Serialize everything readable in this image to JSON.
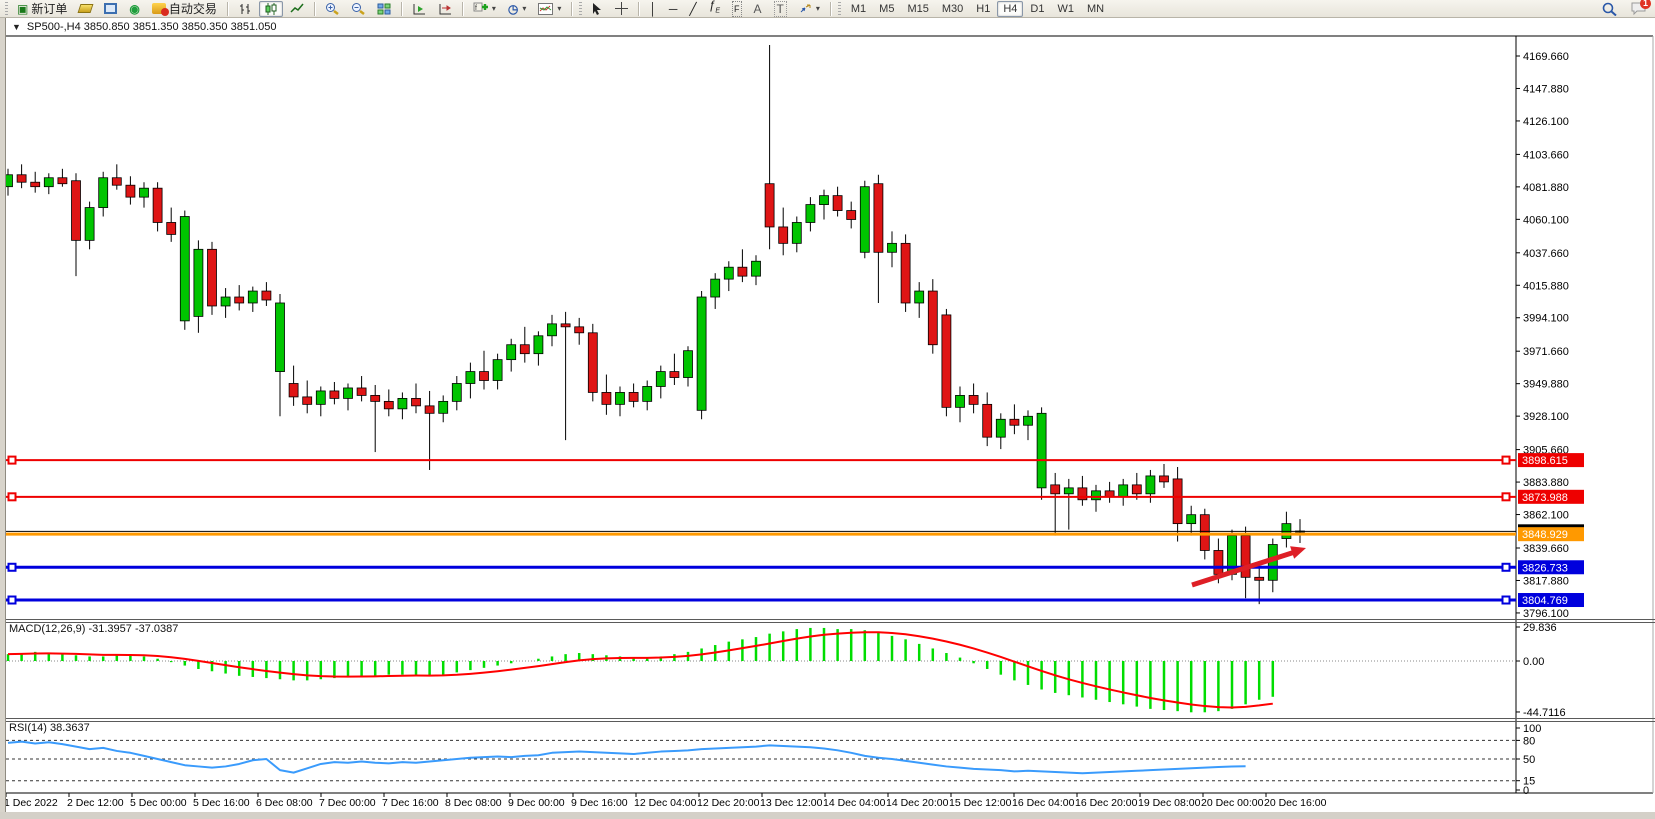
{
  "toolbar": {
    "new_order": "新订单",
    "auto_trading": "自动交易",
    "text_tool": "A",
    "label_tool": "T",
    "timeframes": [
      "M1",
      "M5",
      "M15",
      "M30",
      "H1",
      "H4",
      "D1",
      "W1",
      "MN"
    ],
    "active_timeframe": "H4",
    "notification_badge": "1"
  },
  "window": {
    "title": "SP500-,H4 3850.850 3851.350 3850.350 3851.050"
  },
  "chart_data": {
    "type": "candlestick",
    "symbol_period": "SP500-,H4",
    "ohlc_title": {
      "open": "3850.850",
      "high": "3851.350",
      "low": "3850.350",
      "close": "3851.050"
    },
    "colors": {
      "up": "#00c400",
      "down": "#df1515",
      "wick": "#000000",
      "line_red": "#ee0000",
      "line_orange": "#ff9900",
      "line_blue": "#0000dd",
      "macd_hist": "#00dd00",
      "macd_signal": "#ff0000",
      "rsi": "#3a9bfc",
      "arrow": "#de1f26"
    },
    "price_axis_ticks": [
      "4169.660",
      "4147.880",
      "4126.100",
      "4103.660",
      "4081.880",
      "4060.100",
      "4037.660",
      "4015.880",
      "3994.100",
      "3971.660",
      "3949.880",
      "3928.100",
      "3905.660",
      "3883.880",
      "3862.100",
      "3839.660",
      "3817.880",
      "3796.100"
    ],
    "time_labels": [
      "1 Dec 2022",
      "2 Dec 12:00",
      "5 Dec 00:00",
      "5 Dec 16:00",
      "6 Dec 08:00",
      "7 Dec 00:00",
      "7 Dec 16:00",
      "8 Dec 08:00",
      "9 Dec 00:00",
      "9 Dec 16:00",
      "12 Dec 04:00",
      "12 Dec 20:00",
      "13 Dec 12:00",
      "14 Dec 04:00",
      "14 Dec 20:00",
      "15 Dec 12:00",
      "16 Dec 04:00",
      "16 Dec 20:00",
      "19 Dec 08:00",
      "20 Dec 00:00",
      "20 Dec 16:00"
    ],
    "lines": [
      {
        "price": 3898.615,
        "label": "3898.615",
        "color": "#ee0000",
        "width": 2,
        "handles": true
      },
      {
        "price": 3873.988,
        "label": "3873.988",
        "color": "#ee0000",
        "width": 2,
        "handles": true
      },
      {
        "price": 3848.929,
        "label": "3848.929",
        "color": "#ff9900",
        "width": 3,
        "handles": false
      },
      {
        "price": 3826.733,
        "label": "3826.733",
        "color": "#0000dd",
        "width": 3,
        "handles": true
      },
      {
        "price": 3804.769,
        "label": "3804.769",
        "color": "#0000dd",
        "width": 3,
        "handles": true
      }
    ],
    "bid_line_price": 3850.85,
    "candles": [
      [
        4082,
        4094,
        4076,
        4090
      ],
      [
        4090,
        4097,
        4081,
        4085
      ],
      [
        4085,
        4092,
        4078,
        4082
      ],
      [
        4082,
        4091,
        4077,
        4088
      ],
      [
        4088,
        4094,
        4082,
        4084
      ],
      [
        4086,
        4091,
        4022,
        4046
      ],
      [
        4046,
        4072,
        4040,
        4068
      ],
      [
        4068,
        4092,
        4062,
        4088
      ],
      [
        4088,
        4097,
        4080,
        4083
      ],
      [
        4083,
        4089,
        4070,
        4075
      ],
      [
        4075,
        4085,
        4068,
        4081
      ],
      [
        4081,
        4085,
        4052,
        4058
      ],
      [
        4058,
        4068,
        4045,
        4050
      ],
      [
        3992,
        4066,
        3986,
        4062
      ],
      [
        3995,
        4046,
        3984,
        4040
      ],
      [
        4040,
        4045,
        3996,
        4002
      ],
      [
        4002,
        4014,
        3994,
        4008
      ],
      [
        4008,
        4016,
        3999,
        4004
      ],
      [
        4004,
        4015,
        3998,
        4012
      ],
      [
        4012,
        4018,
        4002,
        4006
      ],
      [
        3958,
        4010,
        3928,
        4004
      ],
      [
        3950,
        3962,
        3935,
        3941
      ],
      [
        3941,
        3952,
        3930,
        3936
      ],
      [
        3936,
        3948,
        3928,
        3945
      ],
      [
        3945,
        3951,
        3936,
        3940
      ],
      [
        3940,
        3950,
        3932,
        3947
      ],
      [
        3947,
        3955,
        3938,
        3942
      ],
      [
        3942,
        3949,
        3904,
        3938
      ],
      [
        3938,
        3946,
        3928,
        3933
      ],
      [
        3933,
        3944,
        3926,
        3940
      ],
      [
        3940,
        3950,
        3930,
        3935
      ],
      [
        3935,
        3945,
        3892,
        3930
      ],
      [
        3930,
        3942,
        3924,
        3938
      ],
      [
        3938,
        3955,
        3932,
        3950
      ],
      [
        3950,
        3964,
        3940,
        3958
      ],
      [
        3958,
        3972,
        3946,
        3952
      ],
      [
        3952,
        3970,
        3946,
        3966
      ],
      [
        3966,
        3980,
        3958,
        3976
      ],
      [
        3976,
        3988,
        3964,
        3970
      ],
      [
        3970,
        3985,
        3962,
        3982
      ],
      [
        3982,
        3996,
        3975,
        3990
      ],
      [
        3990,
        3998,
        3912,
        3988
      ],
      [
        3988,
        3994,
        3976,
        3984
      ],
      [
        3984,
        3990,
        3938,
        3944
      ],
      [
        3944,
        3956,
        3929,
        3936
      ],
      [
        3936,
        3948,
        3928,
        3944
      ],
      [
        3944,
        3950,
        3934,
        3938
      ],
      [
        3938,
        3952,
        3932,
        3948
      ],
      [
        3948,
        3962,
        3940,
        3958
      ],
      [
        3958,
        3970,
        3949,
        3954
      ],
      [
        3954,
        3975,
        3948,
        3972
      ],
      [
        3932,
        4012,
        3926,
        4008
      ],
      [
        4008,
        4024,
        4000,
        4020
      ],
      [
        4020,
        4032,
        4012,
        4028
      ],
      [
        4028,
        4040,
        4018,
        4022
      ],
      [
        4022,
        4036,
        4016,
        4032
      ],
      [
        4084,
        4177,
        4040,
        4055
      ],
      [
        4055,
        4068,
        4036,
        4044
      ],
      [
        4044,
        4062,
        4038,
        4058
      ],
      [
        4058,
        4075,
        4052,
        4070
      ],
      [
        4070,
        4080,
        4060,
        4076
      ],
      [
        4076,
        4082,
        4062,
        4066
      ],
      [
        4066,
        4072,
        4054,
        4060
      ],
      [
        4038,
        4086,
        4034,
        4082
      ],
      [
        4084,
        4090,
        4004,
        4038
      ],
      [
        4038,
        4052,
        4028,
        4044
      ],
      [
        4044,
        4050,
        3998,
        4004
      ],
      [
        4004,
        4018,
        3994,
        4012
      ],
      [
        4012,
        4020,
        3970,
        3976
      ],
      [
        3996,
        4000,
        3928,
        3934
      ],
      [
        3934,
        3948,
        3924,
        3942
      ],
      [
        3942,
        3950,
        3930,
        3936
      ],
      [
        3936,
        3944,
        3908,
        3914
      ],
      [
        3914,
        3930,
        3906,
        3926
      ],
      [
        3926,
        3936,
        3916,
        3922
      ],
      [
        3922,
        3932,
        3912,
        3928
      ],
      [
        3880,
        3934,
        3872,
        3930
      ],
      [
        3882,
        3890,
        3848,
        3876
      ],
      [
        3876,
        3886,
        3852,
        3880
      ],
      [
        3880,
        3888,
        3868,
        3872
      ],
      [
        3872,
        3882,
        3864,
        3878
      ],
      [
        3878,
        3884,
        3870,
        3874
      ],
      [
        3874,
        3886,
        3868,
        3882
      ],
      [
        3882,
        3890,
        3872,
        3876
      ],
      [
        3876,
        3892,
        3870,
        3888
      ],
      [
        3888,
        3896,
        3880,
        3884
      ],
      [
        3886,
        3894,
        3844,
        3856
      ],
      [
        3856,
        3868,
        3848,
        3862
      ],
      [
        3862,
        3866,
        3832,
        3838
      ],
      [
        3838,
        3846,
        3816,
        3822
      ],
      [
        3822,
        3852,
        3818,
        3848
      ],
      [
        3848,
        3854,
        3806,
        3820
      ],
      [
        3820,
        3828,
        3802,
        3818
      ],
      [
        3818,
        3846,
        3810,
        3842
      ],
      [
        3846,
        3864,
        3840,
        3856
      ],
      [
        3850.85,
        3859,
        3843,
        3851.05
      ]
    ],
    "macd": {
      "label": "MACD(12,26,9) -31.3957 -37.0387",
      "axis_values": [
        29.836,
        0,
        -44.7116
      ],
      "axis_labels": [
        "29.836",
        "0.00",
        "-44.7116"
      ],
      "histogram": [
        6,
        7,
        8,
        7,
        6,
        5,
        4,
        4,
        5,
        5,
        4,
        2,
        -1,
        -4,
        -7,
        -9,
        -11,
        -13,
        -14,
        -15,
        -16,
        -17,
        -17,
        -16,
        -15,
        -14,
        -13,
        -13,
        -12,
        -12,
        -12,
        -13,
        -12,
        -10,
        -8,
        -6,
        -4,
        -2,
        0,
        2,
        4,
        6,
        7,
        6,
        5,
        4,
        3,
        3,
        4,
        6,
        8,
        11,
        14,
        17,
        19,
        21,
        24,
        26,
        28,
        29,
        29,
        28,
        28,
        27,
        25,
        22,
        19,
        15,
        11,
        7,
        3,
        -2,
        -7,
        -12,
        -17,
        -21,
        -25,
        -28,
        -30,
        -32,
        -34,
        -36,
        -38,
        -40,
        -42,
        -43,
        -44,
        -45,
        -45,
        -44,
        -42,
        -38,
        -34,
        -31.4
      ]
    },
    "rsi": {
      "label": "RSI(14) 38.3637",
      "levels": [
        80,
        50,
        15
      ],
      "axis_values": [
        100,
        80,
        50,
        15,
        0
      ],
      "axis_labels": [
        "100",
        "80",
        "50",
        "15",
        "0"
      ],
      "values": [
        76,
        78,
        75,
        77,
        74,
        70,
        66,
        68,
        63,
        60,
        55,
        50,
        45,
        40,
        38,
        36,
        38,
        42,
        48,
        50,
        32,
        28,
        35,
        42,
        45,
        44,
        46,
        44,
        43,
        45,
        44,
        46,
        48,
        50,
        52,
        53,
        54,
        53,
        55,
        56,
        60,
        61,
        62,
        61,
        60,
        59,
        58,
        60,
        62,
        63,
        64,
        66,
        67,
        68,
        69,
        70,
        72,
        71,
        70,
        69,
        67,
        64,
        60,
        55,
        52,
        50,
        47,
        44,
        41,
        38,
        36,
        34,
        33,
        32,
        30,
        31,
        30,
        29,
        28,
        27,
        28,
        29,
        30,
        31,
        32,
        33,
        34,
        35,
        36,
        37,
        38,
        38.4
      ]
    },
    "annotation_arrow": {
      "from": [
        1192,
        585
      ],
      "to": [
        1306,
        548
      ]
    }
  }
}
